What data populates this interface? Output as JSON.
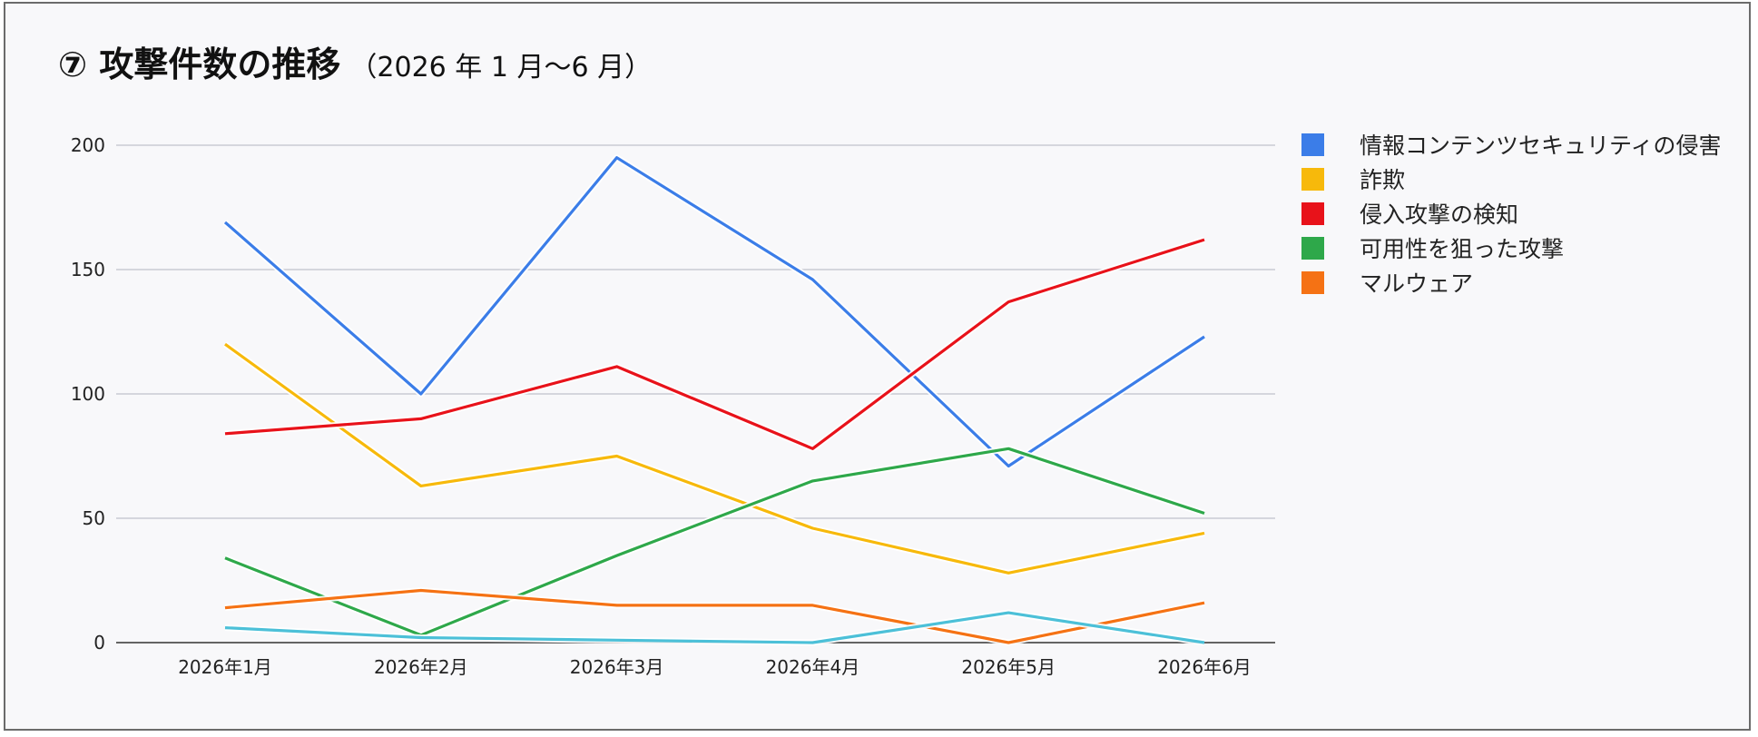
{
  "title": {
    "main": "⑦ 攻撃件数の推移",
    "sub": "（2026 年 1 月〜6 月）"
  },
  "chart_data": {
    "type": "line",
    "categories": [
      "2026年1月",
      "2026年2月",
      "2026年3月",
      "2026年4月",
      "2026年5月",
      "2026年6月"
    ],
    "ylim": [
      0,
      200
    ],
    "yticks": [
      0,
      50,
      100,
      150,
      200
    ],
    "grid": true,
    "legend_position": "right",
    "series": [
      {
        "name": "情報コンテンツセキュリティの侵害",
        "color": "#3b7de8",
        "values": [
          169,
          100,
          195,
          146,
          71,
          123
        ]
      },
      {
        "name": "詐欺",
        "color": "#f7b90b",
        "values": [
          120,
          63,
          75,
          46,
          28,
          44
        ]
      },
      {
        "name": "侵入攻撃の検知",
        "color": "#e8121a",
        "values": [
          84,
          90,
          111,
          78,
          137,
          162
        ]
      },
      {
        "name": "可用性を狙った攻撃",
        "color": "#2ea84a",
        "values": [
          34,
          3,
          35,
          65,
          78,
          52
        ]
      },
      {
        "name": "マルウェア",
        "color": "#f57214",
        "values": [
          14,
          21,
          15,
          15,
          0,
          16
        ]
      },
      {
        "name": "",
        "color": "#4cc0d8",
        "values": [
          6,
          2,
          1,
          0,
          12,
          0
        ]
      }
    ]
  }
}
